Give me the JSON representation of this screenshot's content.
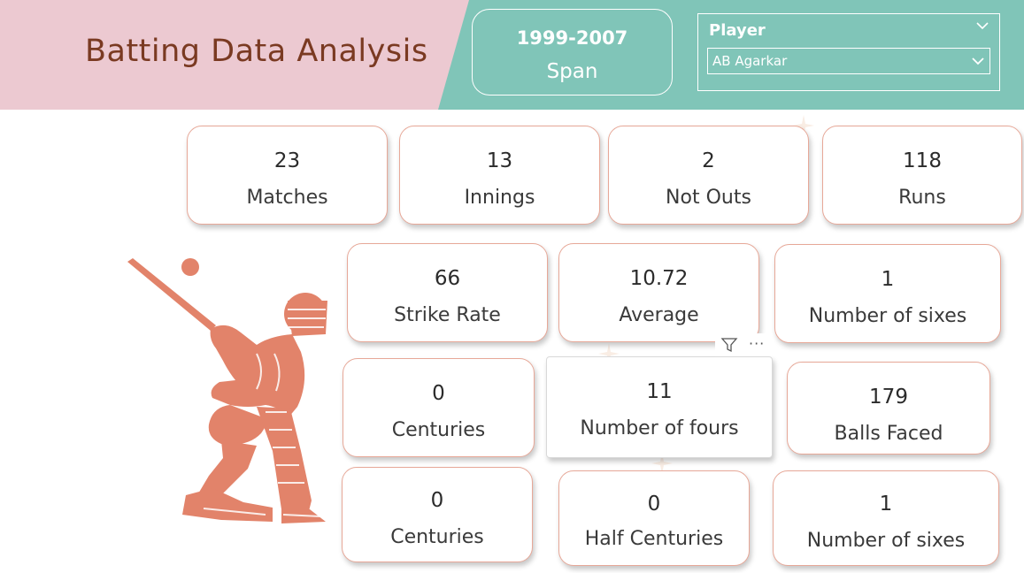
{
  "header": {
    "title": "Batting Data Analysis",
    "span_value": "1999-2007",
    "span_label": "Span"
  },
  "slicer": {
    "title": "Player",
    "selected": "AB Agarkar"
  },
  "cards": [
    {
      "value": "23",
      "label": "Matches"
    },
    {
      "value": "13",
      "label": "Innings"
    },
    {
      "value": "2",
      "label": "Not Outs"
    },
    {
      "value": "118",
      "label": "Runs"
    },
    {
      "value": "66",
      "label": "Strike Rate"
    },
    {
      "value": "10.72",
      "label": "Average"
    },
    {
      "value": "1",
      "label": "Number of sixes"
    },
    {
      "value": "0",
      "label": "Centuries"
    },
    {
      "value": "11",
      "label": "Number of fours"
    },
    {
      "value": "179",
      "label": "Balls Faced"
    },
    {
      "value": "0",
      "label": "Centuries"
    },
    {
      "value": "0",
      "label": "Half Centuries"
    },
    {
      "value": "1",
      "label": "Number of sixes"
    }
  ],
  "visual_tools": {
    "more": "···"
  },
  "colors": {
    "pink": "#ecc9d1",
    "teal": "#80c5b8",
    "title": "#7a3a22",
    "accent": "#e2836a"
  }
}
